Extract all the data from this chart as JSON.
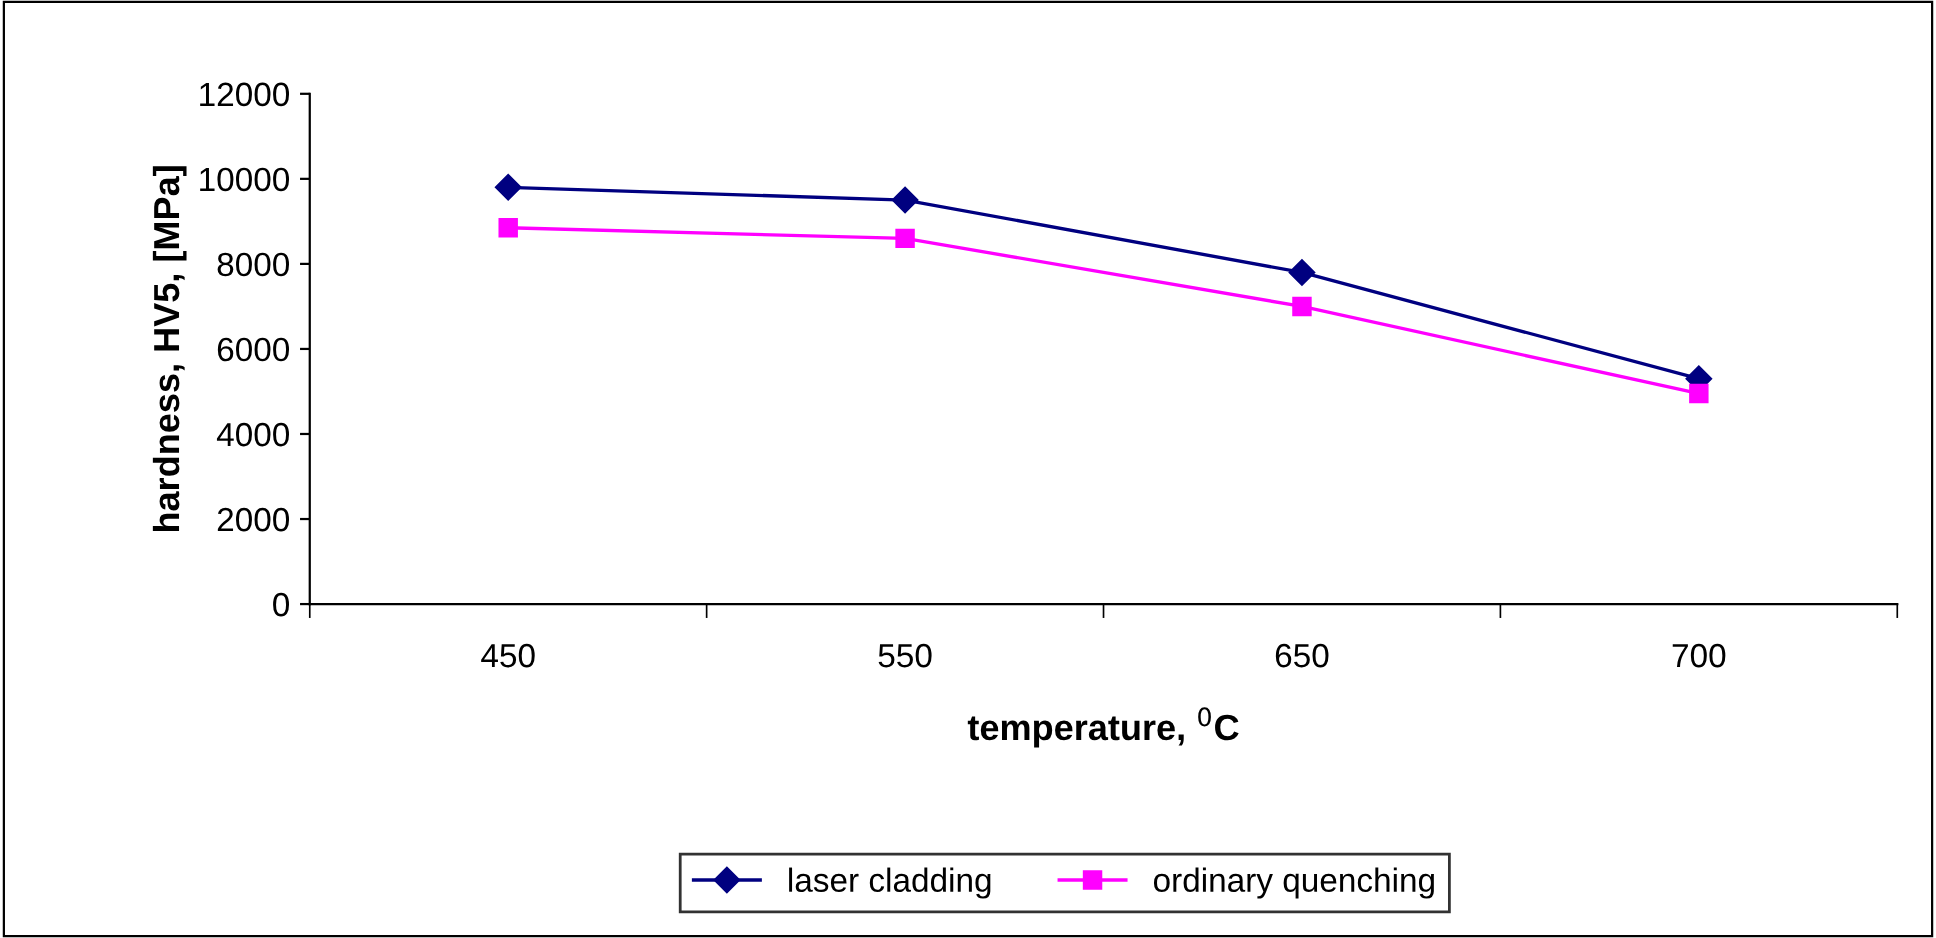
{
  "chart_data": {
    "type": "line",
    "xlabel": "temperature, $^{0}$C",
    "ylabel": "hardness, HV5, [MPa]",
    "categories": [
      "450",
      "550",
      "650",
      "700"
    ],
    "series": [
      {
        "name": "laser cladding",
        "color": "#000080",
        "values": [
          9800,
          9500,
          7800,
          5300
        ],
        "marker": "diamond"
      },
      {
        "name": "ordinary quenching",
        "color": "#ff00ff",
        "values": [
          8850,
          8600,
          7000,
          4950
        ],
        "marker": "square"
      }
    ],
    "ylim": [
      0,
      12000
    ],
    "yticks": [
      0,
      2000,
      4000,
      6000,
      8000,
      10000,
      12000
    ],
    "grid": false,
    "legend": "bottom",
    "line_style": "solid"
  }
}
